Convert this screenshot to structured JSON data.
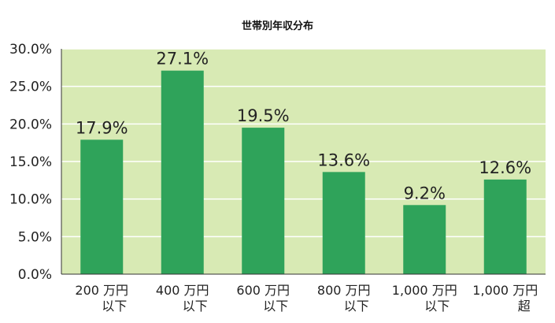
{
  "chart_data": {
    "type": "bar",
    "title": "世帯別年収分布",
    "xlabel": "",
    "ylabel": "",
    "categories": [
      [
        "200 万円",
        "以下"
      ],
      [
        "400 万円",
        "以下"
      ],
      [
        "600 万円",
        "以下"
      ],
      [
        "800 万円",
        "以下"
      ],
      [
        "1,000 万円",
        "以下"
      ],
      [
        "1,000 万円",
        "超"
      ]
    ],
    "values": [
      17.9,
      27.1,
      19.5,
      13.6,
      9.2,
      12.6
    ],
    "data_labels": [
      "17.9%",
      "27.1%",
      "19.5%",
      "13.6%",
      "9.2%",
      "12.6%"
    ],
    "ylim": [
      0,
      30
    ],
    "yticks": [
      0,
      5,
      10,
      15,
      20,
      25,
      30
    ],
    "ytick_labels": [
      "0.0%",
      "5.0%",
      "10.0%",
      "15.0%",
      "20.0%",
      "25.0%",
      "30.0%"
    ],
    "grid": true,
    "legend": "none",
    "colors": {
      "plot_background": "#d8eab4",
      "bar": "#2fa35a",
      "grid": "#ffffff"
    }
  }
}
